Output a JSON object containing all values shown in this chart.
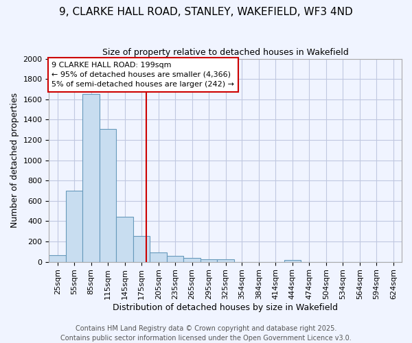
{
  "title1": "9, CLARKE HALL ROAD, STANLEY, WAKEFIELD, WF3 4ND",
  "title2": "Size of property relative to detached houses in Wakefield",
  "xlabel": "Distribution of detached houses by size in Wakefield",
  "ylabel": "Number of detached properties",
  "bin_labels": [
    "25sqm",
    "55sqm",
    "85sqm",
    "115sqm",
    "145sqm",
    "175sqm",
    "205sqm",
    "235sqm",
    "265sqm",
    "295sqm",
    "325sqm",
    "354sqm",
    "384sqm",
    "414sqm",
    "444sqm",
    "474sqm",
    "504sqm",
    "534sqm",
    "564sqm",
    "594sqm",
    "624sqm"
  ],
  "bin_lefts": [
    25,
    55,
    85,
    115,
    145,
    175,
    205,
    235,
    265,
    295,
    325,
    354,
    384,
    414,
    444,
    474,
    504,
    534,
    564,
    594,
    624
  ],
  "bin_width": 30,
  "counts": [
    65,
    700,
    1650,
    1310,
    445,
    255,
    90,
    55,
    35,
    25,
    25,
    0,
    0,
    0,
    20,
    0,
    0,
    0,
    0,
    0,
    0
  ],
  "bar_color": "#c8ddf0",
  "bar_edge_color": "#6699bb",
  "property_size": 199,
  "vline_color": "#cc0000",
  "annotation_line1": "9 CLARKE HALL ROAD: 199sqm",
  "annotation_line2": "← 95% of detached houses are smaller (4,366)",
  "annotation_line3": "5% of semi-detached houses are larger (242) →",
  "annotation_box_facecolor": "#ffffff",
  "annotation_box_edgecolor": "#cc0000",
  "ylim": [
    0,
    2000
  ],
  "yticks": [
    0,
    200,
    400,
    600,
    800,
    1000,
    1200,
    1400,
    1600,
    1800,
    2000
  ],
  "footer1": "Contains HM Land Registry data © Crown copyright and database right 2025.",
  "footer2": "Contains public sector information licensed under the Open Government Licence v3.0.",
  "bg_color": "#f0f4ff",
  "grid_color": "#c0c8e0",
  "title_fontsize": 11,
  "subtitle_fontsize": 9,
  "axis_label_fontsize": 9,
  "tick_fontsize": 8,
  "annotation_fontsize": 8,
  "footer_fontsize": 7
}
